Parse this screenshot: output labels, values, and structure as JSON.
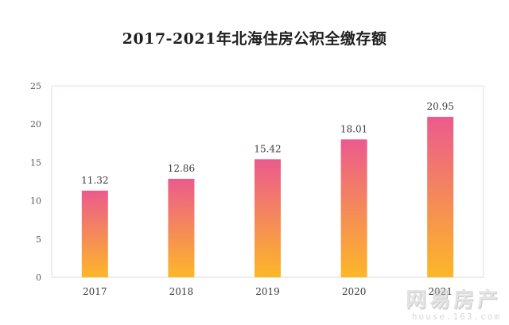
{
  "chart_data": {
    "type": "bar",
    "title": "2017-2021年北海住房公积全缴存额",
    "categories": [
      "2017",
      "2018",
      "2019",
      "2020",
      "2021"
    ],
    "values": [
      11.32,
      12.86,
      15.42,
      18.01,
      20.95
    ],
    "value_labels": [
      "11.32",
      "12.86",
      "15.42",
      "18.01",
      "20.95"
    ],
    "ylim": [
      0,
      25
    ],
    "yticks": [
      "0",
      "5",
      "10",
      "15",
      "20",
      "25"
    ],
    "grid": false,
    "legend": "none",
    "colors": {
      "bar_top": "#ec5a8d",
      "bar_bottom": "#fdb728",
      "plot_border": "#f2d7dd",
      "axis": "#d9d9d9"
    }
  },
  "watermark": {
    "main": "网易房产",
    "sub": "house.163.com"
  }
}
